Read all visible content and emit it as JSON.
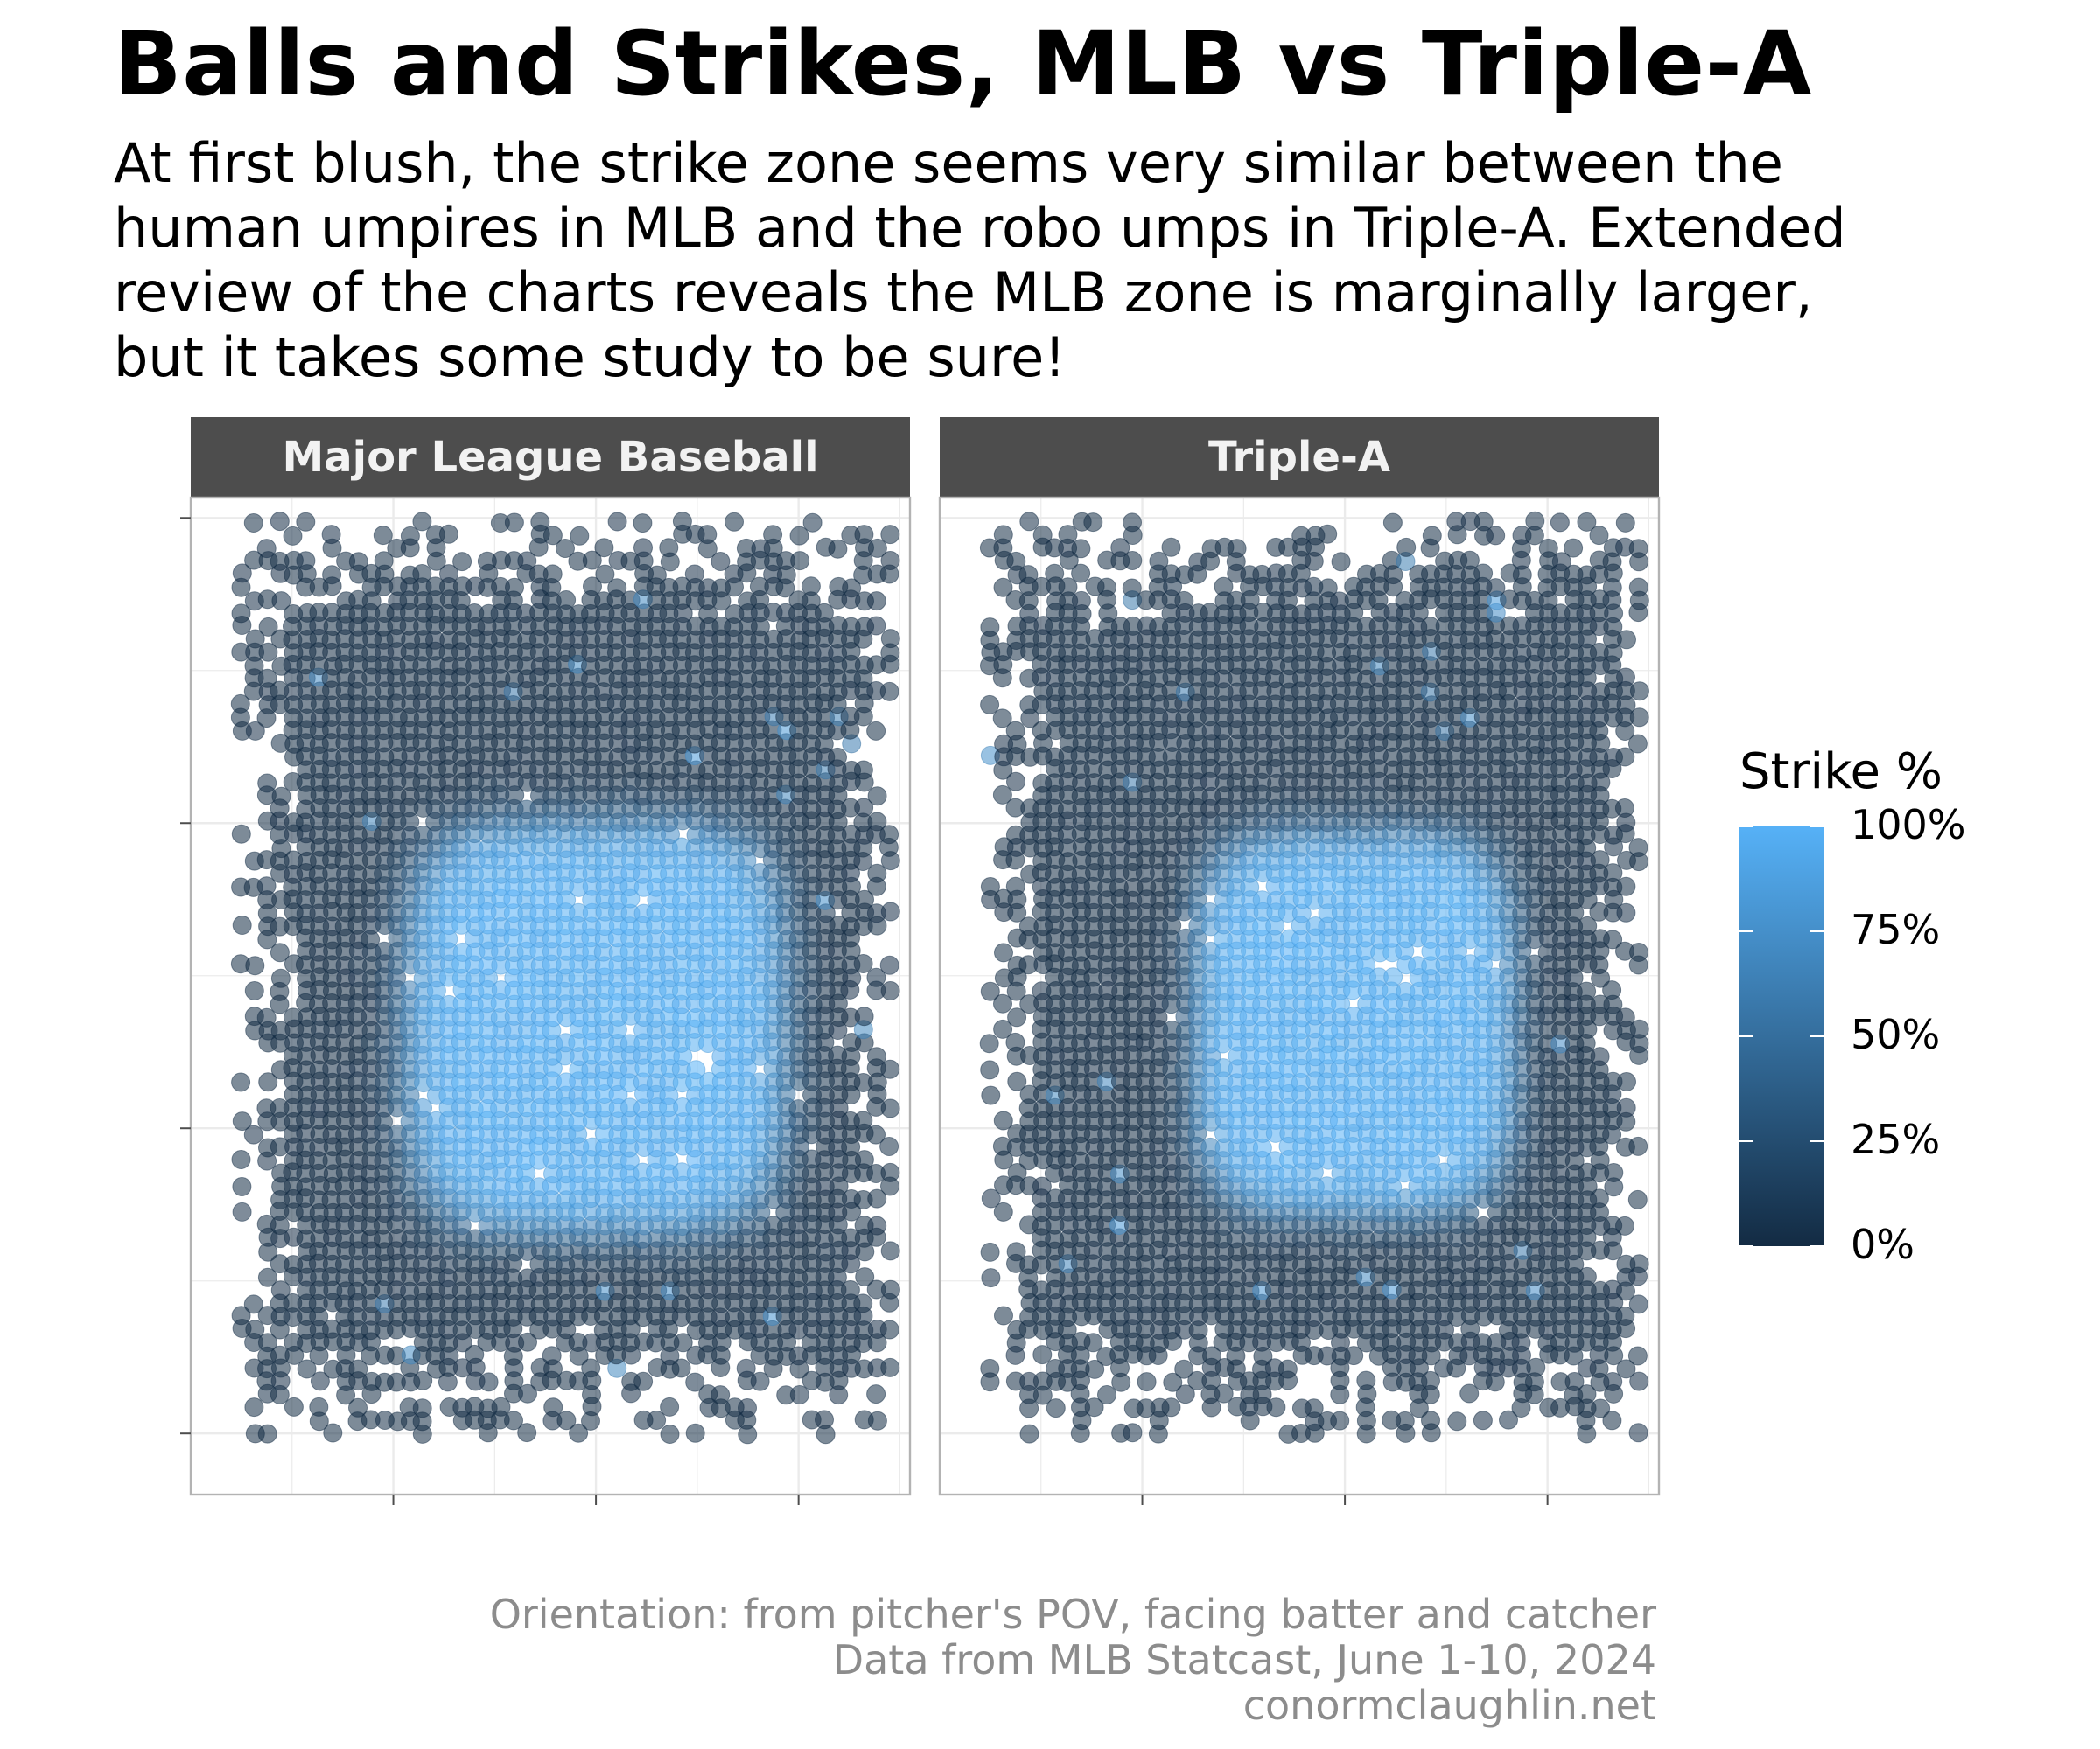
{
  "title": "Balls and Strikes, MLB vs Triple-A",
  "subtitle_lines": [
    "At first blush, the strike zone seems very similar between the",
    "human umpires in MLB and the robo umps in Triple-A. Extended",
    "review of the charts reveals the MLB zone is marginally larger,",
    "but it takes some study to be sure!"
  ],
  "caption_lines": [
    "Orientation: from pitcher's POV, facing batter and catcher",
    "Data from MLB Statcast, June 1-10, 2024",
    "conormclaughlin.net"
  ],
  "colors": {
    "low": "#132B43",
    "high": "#56B1F7",
    "strip_background": "#4d4d4d",
    "strip_text": "#f2f2f2",
    "grid": "#ebebeb",
    "panel_border": "#b3b3b3",
    "caption": "#8c8c8c"
  },
  "chart_data": {
    "type": "scatter",
    "encoding": "points colored by strike percentage",
    "x_range": [
      -2,
      1.55
    ],
    "y_range": [
      0.2,
      5.1
    ],
    "x_ticks": [
      -1,
      0,
      1
    ],
    "y_ticks": [
      0.5,
      2,
      3.5,
      5
    ],
    "tick_labels_shown": false,
    "grid": true,
    "legend": {
      "title": "Strike %",
      "position": "right",
      "labels": [
        "0%",
        "25%",
        "50%",
        "75%",
        "100%"
      ],
      "values": [
        0,
        0.25,
        0.5,
        0.75,
        1
      ]
    },
    "panels": [
      {
        "name": "Major League Baseball",
        "x_extent": [
          -1.75,
          1.5
        ],
        "y_extent": [
          0.5,
          5
        ],
        "zone_center": [
          0,
          2.5
        ],
        "zone_half_width": 0.95,
        "zone_half_height": 1.02,
        "strike_prob_inside": 0.97
      },
      {
        "name": "Triple-A",
        "x_extent": [
          -1.75,
          1.5
        ],
        "y_extent": [
          0.5,
          5
        ],
        "zone_center": [
          0.05,
          2.52
        ],
        "zone_half_width": 0.8,
        "zone_half_height": 0.95,
        "strike_prob_inside": 0.97
      }
    ]
  }
}
